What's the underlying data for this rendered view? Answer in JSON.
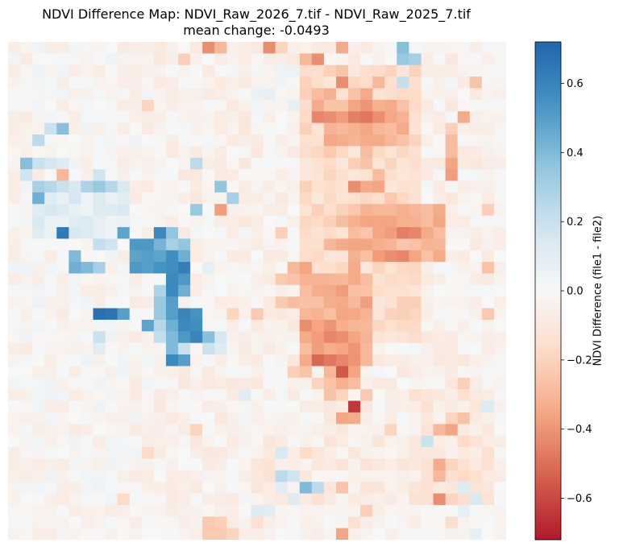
{
  "title": {
    "line1": "NDVI Difference Map: NDVI_Raw_2026_7.tif - NDVI_Raw_2025_7.tif",
    "line2": "mean change: -0.0493"
  },
  "chart_data": {
    "type": "heatmap",
    "title": "NDVI Difference Map: NDVI_Raw_2026_7.tif - NDVI_Raw_2025_7.tif",
    "subtitle": "mean change: -0.0493",
    "colormap": "RdBu",
    "colorbar": {
      "label": "NDVI Difference (file1 - file2)",
      "vmin": -0.72,
      "vmax": 0.72,
      "ticks": [
        0.6,
        0.4,
        0.2,
        0.0,
        -0.2,
        -0.4,
        -0.6
      ],
      "tick_labels": [
        "0.6",
        "0.4",
        "0.2",
        "0.0",
        "−0.2",
        "−0.4",
        "−0.6"
      ]
    },
    "rows": 40,
    "cols": 40,
    "base_value": -0.03,
    "regions": [
      {
        "r0": 0,
        "r1": 40,
        "c0": 0,
        "c1": 40,
        "v": -0.04
      },
      {
        "r0": 0,
        "r1": 40,
        "c0": 0,
        "c1": 12,
        "v": -0.02
      },
      {
        "r0": 12,
        "r1": 17,
        "c0": 2,
        "c1": 10,
        "v": 0.1
      },
      {
        "r0": 2,
        "r1": 6,
        "c0": 20,
        "c1": 24,
        "v": 0.02
      },
      {
        "r0": 2,
        "r1": 26,
        "c0": 24,
        "c1": 34,
        "v": -0.16
      },
      {
        "r0": 5,
        "r1": 9,
        "c0": 26,
        "c1": 33,
        "v": -0.3
      },
      {
        "r0": 14,
        "r1": 19,
        "c0": 28,
        "c1": 36,
        "v": -0.3
      },
      {
        "r0": 20,
        "r1": 27,
        "c0": 24,
        "c1": 30,
        "v": -0.32
      },
      {
        "r0": 34,
        "r1": 40,
        "c0": 20,
        "c1": 34,
        "v": -0.07
      },
      {
        "r0": 30,
        "r1": 40,
        "c0": 33,
        "c1": 40,
        "v": -0.09
      }
    ],
    "cells": [
      [
        0,
        16,
        -0.42
      ],
      [
        0,
        17,
        -0.3
      ],
      [
        0,
        21,
        -0.42
      ],
      [
        0,
        22,
        -0.2
      ],
      [
        0,
        27,
        -0.34
      ],
      [
        0,
        32,
        0.38
      ],
      [
        1,
        14,
        -0.22
      ],
      [
        1,
        24,
        -0.3
      ],
      [
        1,
        25,
        -0.42
      ],
      [
        1,
        32,
        0.34
      ],
      [
        1,
        33,
        0.3
      ],
      [
        2,
        27,
        -0.26
      ],
      [
        2,
        31,
        -0.2
      ],
      [
        3,
        27,
        -0.42
      ],
      [
        3,
        30,
        -0.3
      ],
      [
        3,
        32,
        0.22
      ],
      [
        3,
        38,
        -0.26
      ],
      [
        4,
        25,
        -0.28
      ],
      [
        4,
        26,
        -0.32
      ],
      [
        4,
        28,
        -0.26
      ],
      [
        4,
        29,
        -0.34
      ],
      [
        5,
        11,
        -0.2
      ],
      [
        5,
        25,
        -0.34
      ],
      [
        5,
        28,
        -0.36
      ],
      [
        5,
        29,
        -0.4
      ],
      [
        5,
        30,
        -0.32
      ],
      [
        6,
        25,
        -0.44
      ],
      [
        6,
        26,
        -0.42
      ],
      [
        6,
        27,
        -0.38
      ],
      [
        6,
        28,
        -0.46
      ],
      [
        6,
        29,
        -0.48
      ],
      [
        6,
        30,
        -0.42
      ],
      [
        6,
        37,
        -0.34
      ],
      [
        7,
        3,
        0.2
      ],
      [
        7,
        4,
        0.38
      ],
      [
        7,
        28,
        -0.32
      ],
      [
        7,
        30,
        -0.3
      ],
      [
        7,
        31,
        -0.28
      ],
      [
        7,
        36,
        -0.22
      ],
      [
        8,
        2,
        0.24
      ],
      [
        8,
        30,
        -0.34
      ],
      [
        8,
        31,
        -0.3
      ],
      [
        8,
        36,
        -0.28
      ],
      [
        9,
        26,
        -0.24
      ],
      [
        9,
        29,
        -0.28
      ],
      [
        9,
        36,
        -0.28
      ],
      [
        10,
        1,
        0.38
      ],
      [
        10,
        2,
        0.2
      ],
      [
        10,
        3,
        0.16
      ],
      [
        10,
        4,
        0.12
      ],
      [
        10,
        15,
        0.24
      ],
      [
        10,
        29,
        -0.26
      ],
      [
        10,
        36,
        -0.36
      ],
      [
        11,
        1,
        0.18
      ],
      [
        11,
        4,
        -0.3
      ],
      [
        11,
        7,
        0.18
      ],
      [
        11,
        36,
        -0.38
      ],
      [
        11,
        30,
        -0.28
      ],
      [
        12,
        2,
        0.3
      ],
      [
        12,
        3,
        0.26
      ],
      [
        12,
        4,
        0.2
      ],
      [
        12,
        6,
        0.28
      ],
      [
        12,
        7,
        0.34
      ],
      [
        12,
        8,
        0.26
      ],
      [
        12,
        17,
        0.36
      ],
      [
        12,
        28,
        -0.42
      ],
      [
        12,
        29,
        -0.34
      ],
      [
        12,
        30,
        -0.36
      ],
      [
        13,
        2,
        0.44
      ],
      [
        13,
        18,
        0.3
      ],
      [
        13,
        15,
        -0.1
      ],
      [
        13,
        31,
        -0.24
      ],
      [
        14,
        15,
        0.34
      ],
      [
        14,
        17,
        -0.38
      ],
      [
        14,
        34,
        -0.28
      ],
      [
        14,
        39,
        -0.22
      ],
      [
        15,
        27,
        -0.28
      ],
      [
        15,
        28,
        -0.32
      ],
      [
        15,
        29,
        -0.36
      ],
      [
        15,
        30,
        -0.36
      ],
      [
        15,
        31,
        -0.36
      ],
      [
        15,
        33,
        -0.32
      ],
      [
        15,
        34,
        -0.28
      ],
      [
        16,
        4,
        0.64
      ],
      [
        16,
        9,
        0.48
      ],
      [
        16,
        12,
        0.58
      ],
      [
        16,
        13,
        0.36
      ],
      [
        16,
        22,
        -0.22
      ],
      [
        16,
        31,
        -0.38
      ],
      [
        16,
        32,
        -0.46
      ],
      [
        16,
        33,
        -0.44
      ],
      [
        16,
        34,
        -0.34
      ],
      [
        17,
        7,
        0.22
      ],
      [
        17,
        8,
        0.18
      ],
      [
        17,
        10,
        0.52
      ],
      [
        17,
        11,
        0.52
      ],
      [
        17,
        12,
        0.42
      ],
      [
        17,
        13,
        0.3
      ],
      [
        17,
        14,
        0.36
      ],
      [
        17,
        26,
        -0.3
      ],
      [
        17,
        27,
        -0.34
      ],
      [
        17,
        28,
        -0.36
      ],
      [
        17,
        29,
        -0.36
      ],
      [
        18,
        5,
        0.4
      ],
      [
        18,
        10,
        0.48
      ],
      [
        18,
        11,
        0.5
      ],
      [
        18,
        12,
        0.48
      ],
      [
        18,
        13,
        0.56
      ],
      [
        18,
        14,
        0.44
      ],
      [
        18,
        30,
        -0.38
      ],
      [
        18,
        31,
        -0.42
      ],
      [
        18,
        32,
        -0.44
      ],
      [
        18,
        33,
        -0.36
      ],
      [
        19,
        5,
        0.44
      ],
      [
        19,
        6,
        0.4
      ],
      [
        19,
        7,
        0.3
      ],
      [
        19,
        10,
        0.52
      ],
      [
        19,
        11,
        0.5
      ],
      [
        19,
        12,
        0.54
      ],
      [
        19,
        13,
        0.56
      ],
      [
        19,
        14,
        0.62
      ],
      [
        19,
        16,
        0.08
      ],
      [
        19,
        23,
        -0.3
      ],
      [
        19,
        24,
        -0.36
      ],
      [
        19,
        28,
        -0.34
      ],
      [
        19,
        39,
        -0.26
      ],
      [
        20,
        13,
        0.58
      ],
      [
        20,
        14,
        0.52
      ],
      [
        20,
        22,
        -0.24
      ],
      [
        20,
        23,
        -0.26
      ],
      [
        20,
        27,
        -0.3
      ],
      [
        20,
        28,
        -0.34
      ],
      [
        21,
        12,
        0.28
      ],
      [
        21,
        13,
        0.58
      ],
      [
        21,
        14,
        0.44
      ],
      [
        21,
        24,
        -0.28
      ],
      [
        21,
        27,
        -0.38
      ],
      [
        22,
        12,
        0.34
      ],
      [
        22,
        13,
        0.5
      ],
      [
        22,
        22,
        -0.24
      ],
      [
        22,
        23,
        -0.28
      ],
      [
        22,
        27,
        -0.34
      ],
      [
        23,
        7,
        0.68
      ],
      [
        23,
        8,
        0.66
      ],
      [
        23,
        9,
        0.5
      ],
      [
        23,
        12,
        0.34
      ],
      [
        23,
        13,
        0.5
      ],
      [
        23,
        14,
        0.6
      ],
      [
        23,
        15,
        0.54
      ],
      [
        23,
        18,
        -0.2
      ],
      [
        23,
        20,
        -0.24
      ],
      [
        23,
        27,
        -0.36
      ],
      [
        23,
        39,
        -0.24
      ],
      [
        24,
        11,
        0.48
      ],
      [
        24,
        12,
        0.26
      ],
      [
        24,
        13,
        0.44
      ],
      [
        24,
        14,
        0.58
      ],
      [
        24,
        15,
        0.56
      ],
      [
        24,
        24,
        -0.42
      ],
      [
        24,
        25,
        -0.36
      ],
      [
        24,
        26,
        -0.4
      ],
      [
        25,
        7,
        0.2
      ],
      [
        25,
        12,
        0.22
      ],
      [
        25,
        13,
        0.4
      ],
      [
        25,
        14,
        0.52
      ],
      [
        25,
        15,
        0.6
      ],
      [
        25,
        16,
        0.38
      ],
      [
        25,
        17,
        0.16
      ],
      [
        25,
        25,
        -0.38
      ],
      [
        25,
        26,
        -0.44
      ],
      [
        25,
        27,
        -0.42
      ],
      [
        25,
        28,
        -0.36
      ],
      [
        26,
        7,
        0.1
      ],
      [
        26,
        13,
        0.4
      ],
      [
        26,
        14,
        0.2
      ],
      [
        26,
        16,
        0.2
      ],
      [
        26,
        17,
        0.12
      ],
      [
        26,
        27,
        -0.36
      ],
      [
        26,
        28,
        -0.4
      ],
      [
        27,
        13,
        0.58
      ],
      [
        27,
        14,
        0.5
      ],
      [
        27,
        24,
        -0.34
      ],
      [
        27,
        25,
        -0.52
      ],
      [
        27,
        26,
        -0.48
      ],
      [
        27,
        27,
        -0.44
      ],
      [
        27,
        28,
        -0.4
      ],
      [
        27,
        29,
        -0.3
      ],
      [
        28,
        23,
        -0.22
      ],
      [
        28,
        24,
        -0.26
      ],
      [
        28,
        26,
        -0.3
      ],
      [
        28,
        27,
        -0.56
      ],
      [
        28,
        28,
        -0.36
      ],
      [
        29,
        25,
        -0.2
      ],
      [
        29,
        26,
        -0.26
      ],
      [
        29,
        27,
        -0.32
      ],
      [
        29,
        28,
        -0.28
      ],
      [
        29,
        37,
        -0.22
      ],
      [
        30,
        19,
        0.1
      ],
      [
        30,
        26,
        -0.26
      ],
      [
        30,
        27,
        -0.2
      ],
      [
        30,
        29,
        -0.24
      ],
      [
        31,
        28,
        -0.64
      ],
      [
        31,
        39,
        0.12
      ],
      [
        32,
        27,
        -0.36
      ],
      [
        32,
        28,
        -0.34
      ],
      [
        32,
        36,
        -0.2
      ],
      [
        32,
        37,
        -0.26
      ],
      [
        33,
        15,
        -0.2
      ],
      [
        33,
        31,
        -0.2
      ],
      [
        33,
        35,
        -0.3
      ],
      [
        33,
        36,
        -0.36
      ],
      [
        34,
        34,
        0.2
      ],
      [
        34,
        37,
        -0.18
      ],
      [
        35,
        11,
        -0.18
      ],
      [
        35,
        22,
        0.14
      ],
      [
        35,
        24,
        -0.18
      ],
      [
        36,
        35,
        -0.34
      ],
      [
        36,
        36,
        -0.2
      ],
      [
        37,
        22,
        0.24
      ],
      [
        37,
        23,
        0.18
      ],
      [
        37,
        35,
        -0.3
      ],
      [
        37,
        37,
        -0.18
      ],
      [
        38,
        22,
        0.1
      ],
      [
        38,
        24,
        0.4
      ],
      [
        38,
        25,
        0.24
      ],
      [
        38,
        27,
        -0.26
      ],
      [
        38,
        37,
        0.12
      ],
      [
        39,
        9,
        -0.18
      ],
      [
        39,
        23,
        0.12
      ],
      [
        39,
        25,
        -0.14
      ],
      [
        39,
        35,
        -0.42
      ],
      [
        39,
        36,
        -0.2
      ],
      [
        39,
        38,
        0.14
      ],
      [
        40,
        20,
        0.12
      ],
      [
        40,
        21,
        0.1
      ],
      [
        40,
        29,
        -0.22
      ],
      [
        40,
        37,
        0.08
      ],
      [
        41,
        16,
        -0.24
      ],
      [
        41,
        17,
        -0.22
      ],
      [
        41,
        20,
        -0.14
      ],
      [
        41,
        28,
        -0.14
      ],
      [
        41,
        36,
        -0.16
      ],
      [
        42,
        16,
        -0.24
      ],
      [
        42,
        17,
        -0.24
      ],
      [
        42,
        18,
        -0.2
      ],
      [
        42,
        27,
        -0.36
      ],
      [
        42,
        38,
        0.08
      ]
    ]
  }
}
